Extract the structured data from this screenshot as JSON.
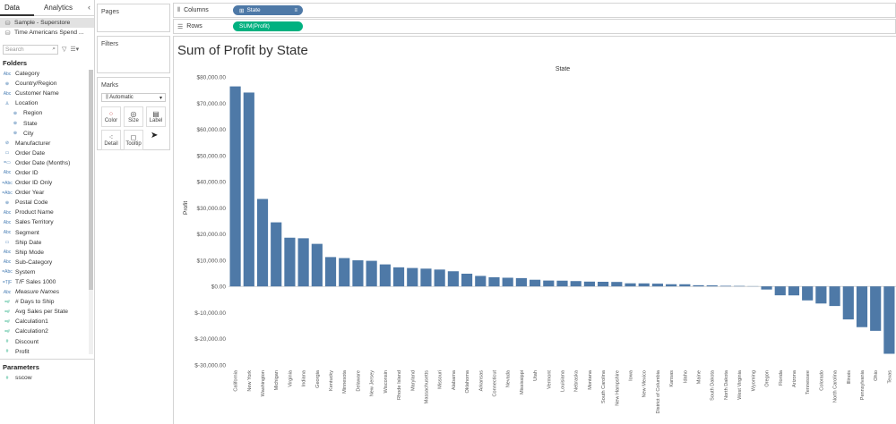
{
  "data_pane": {
    "tabs": [
      "Data",
      "Analytics"
    ],
    "collapse_icon": "chevron-left-icon",
    "datasources": [
      "Sample - Superstore",
      "Time Americans Spend ..."
    ],
    "search_placeholder": "Search",
    "folders_heading": "Folders",
    "fields": [
      {
        "label": "Category",
        "type": "Abc",
        "kind": "dim"
      },
      {
        "label": "Country/Region",
        "type": "⊕",
        "kind": "dim"
      },
      {
        "label": "Customer Name",
        "type": "Abc",
        "kind": "dim"
      },
      {
        "label": "Location",
        "type": "♙",
        "kind": "dim"
      },
      {
        "label": "Region",
        "type": "⊕",
        "kind": "dim",
        "indent": true
      },
      {
        "label": "State",
        "type": "⊕",
        "kind": "dim",
        "indent": true
      },
      {
        "label": "City",
        "type": "⊕",
        "kind": "dim",
        "indent": true
      },
      {
        "label": "Manufacturer",
        "type": "⊘",
        "kind": "dim"
      },
      {
        "label": "Order Date",
        "type": "▭",
        "kind": "dim"
      },
      {
        "label": "Order Date (Months)",
        "type": "=▭",
        "kind": "dim"
      },
      {
        "label": "Order ID",
        "type": "Abc",
        "kind": "dim"
      },
      {
        "label": "Order ID Only",
        "type": "=Abc",
        "kind": "dim"
      },
      {
        "label": "Order Year",
        "type": "=Abc",
        "kind": "dim"
      },
      {
        "label": "Postal Code",
        "type": "⊕",
        "kind": "dim"
      },
      {
        "label": "Product Name",
        "type": "Abc",
        "kind": "dim"
      },
      {
        "label": "Sales Territory",
        "type": "Abc",
        "kind": "dim"
      },
      {
        "label": "Segment",
        "type": "Abc",
        "kind": "dim"
      },
      {
        "label": "Ship Date",
        "type": "▭",
        "kind": "dim"
      },
      {
        "label": "Ship Mode",
        "type": "Abc",
        "kind": "dim"
      },
      {
        "label": "Sub-Category",
        "type": "Abc",
        "kind": "dim"
      },
      {
        "label": "System",
        "type": "=Abc",
        "kind": "dim"
      },
      {
        "label": "T/F Sales 1000",
        "type": "=T|F",
        "kind": "dim"
      },
      {
        "label": "Measure Names",
        "type": "Abc",
        "kind": "dim",
        "italic": true
      },
      {
        "label": "# Days to Ship",
        "type": "=#",
        "kind": "meas"
      },
      {
        "label": "Avg Sales per State",
        "type": "=#",
        "kind": "meas"
      },
      {
        "label": "Calculation1",
        "type": "=#",
        "kind": "meas"
      },
      {
        "label": "Calculation2",
        "type": "=#",
        "kind": "meas"
      },
      {
        "label": "Discount",
        "type": "#",
        "kind": "meas"
      },
      {
        "label": "Profit",
        "type": "#",
        "kind": "meas"
      }
    ],
    "parameters_heading": "Parameters",
    "parameters": [
      {
        "label": "sscow",
        "type": "#"
      }
    ]
  },
  "cards": {
    "pages": "Pages",
    "filters": "Filters",
    "marks": "Marks",
    "mark_type": "Automatic",
    "mark_buttons": [
      {
        "label": "Color",
        "icon": "color-dots-icon"
      },
      {
        "label": "Size",
        "icon": "size-icon"
      },
      {
        "label": "Label",
        "icon": "label-icon"
      },
      {
        "label": "Detail",
        "icon": "detail-icon"
      },
      {
        "label": "Tooltip",
        "icon": "tooltip-icon"
      }
    ]
  },
  "shelves": {
    "columns_label": "Columns",
    "columns_pill": "State",
    "rows_label": "Rows",
    "rows_pill": "SUM(Profit)"
  },
  "chart_data": {
    "type": "bar",
    "title": "Sum of Profit by State",
    "column_header": "State",
    "ylabel": "Profit",
    "ylim": [
      -30000,
      80000
    ],
    "yticks": [
      "$80,000.00",
      "$70,000.00",
      "$60,000.00",
      "$50,000.00",
      "$40,000.00",
      "$30,000.00",
      "$20,000.00",
      "$10,000.00",
      "$0.00",
      "$-10,000.00",
      "$-20,000.00",
      "$-30,000.00"
    ],
    "ytick_values": [
      80000,
      70000,
      60000,
      50000,
      40000,
      30000,
      20000,
      10000,
      0,
      -10000,
      -20000,
      -30000
    ],
    "bar_color": "#4e79a7",
    "categories": [
      "California",
      "New York",
      "Washington",
      "Michigan",
      "Virginia",
      "Indiana",
      "Georgia",
      "Kentucky",
      "Minnesota",
      "Delaware",
      "New Jersey",
      "Wisconsin",
      "Rhode Island",
      "Maryland",
      "Massachusetts",
      "Missouri",
      "Alabama",
      "Oklahoma",
      "Arkansas",
      "Connecticut",
      "Nevada",
      "Mississippi",
      "Utah",
      "Vermont",
      "Louisiana",
      "Nebraska",
      "Montana",
      "South Carolina",
      "New Hampshire",
      "Iowa",
      "New Mexico",
      "District of Columbia",
      "Kansas",
      "Idaho",
      "Maine",
      "South Dakota",
      "North Dakota",
      "West Virginia",
      "Wyoming",
      "Oregon",
      "Florida",
      "Arizona",
      "Tennessee",
      "Colorado",
      "North Carolina",
      "Illinois",
      "Pennsylvania",
      "Ohio",
      "Texas"
    ],
    "values": [
      76381,
      74039,
      33403,
      24463,
      18598,
      18383,
      16250,
      11200,
      10823,
      9977,
      9773,
      8402,
      7286,
      7031,
      6786,
      6436,
      5787,
      4854,
      4009,
      3511,
      3317,
      3173,
      2547,
      2245,
      2196,
      2037,
      1833,
      1769,
      1707,
      1184,
      1158,
      1060,
      836,
      827,
      454,
      395,
      230,
      186,
      100,
      -1190,
      -3399,
      -3428,
      -5342,
      -6528,
      -7491,
      -12608,
      -15560,
      -16971,
      -25729
    ]
  }
}
